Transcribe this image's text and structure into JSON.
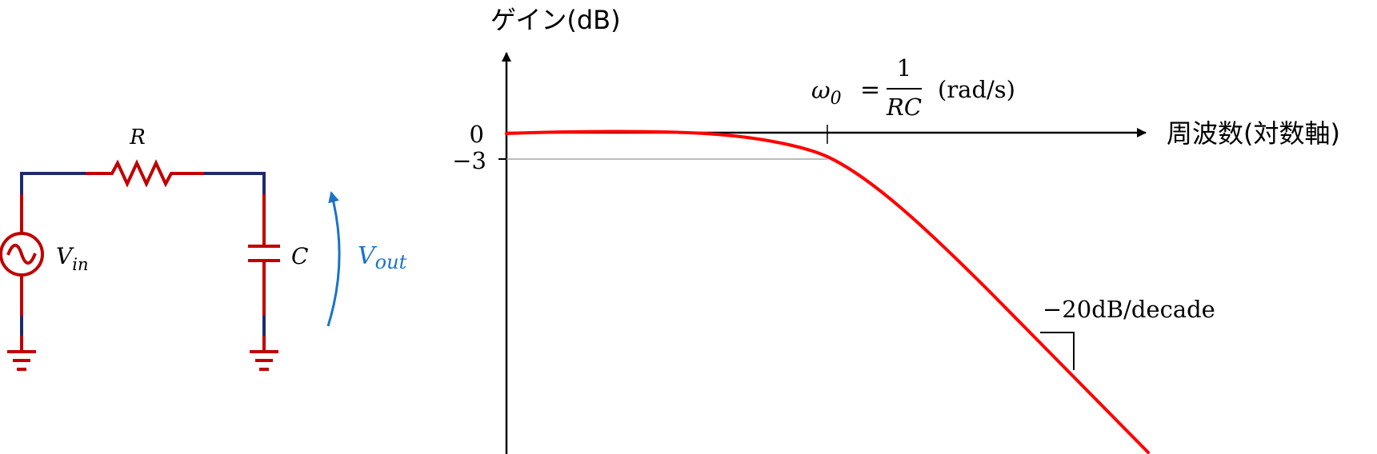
{
  "circuit": {
    "resistor_label": "R",
    "capacitor_label": "C",
    "source_label_main": "V",
    "source_label_sub": "in",
    "output_label_main": "V",
    "output_label_sub": "out"
  },
  "plot": {
    "y_axis_label": "ゲイン(dB)",
    "x_axis_label": "周波数(対数軸)",
    "tick_0": "0",
    "tick_minus3": "−3",
    "omega_symbol": "ω",
    "omega_sub": "0",
    "equals": "=",
    "fraction_numerator": "1",
    "fraction_denominator": "RC",
    "unit": "(rad/s)",
    "slope_label": "−20dB/decade"
  },
  "colors": {
    "wire_blue": "#1f2a6b",
    "component_red": "#c00000",
    "curve_red": "#ff0000",
    "arrow_blue": "#1a73c7",
    "axis": "#000000",
    "guide_gray": "#a6a6a6"
  }
}
